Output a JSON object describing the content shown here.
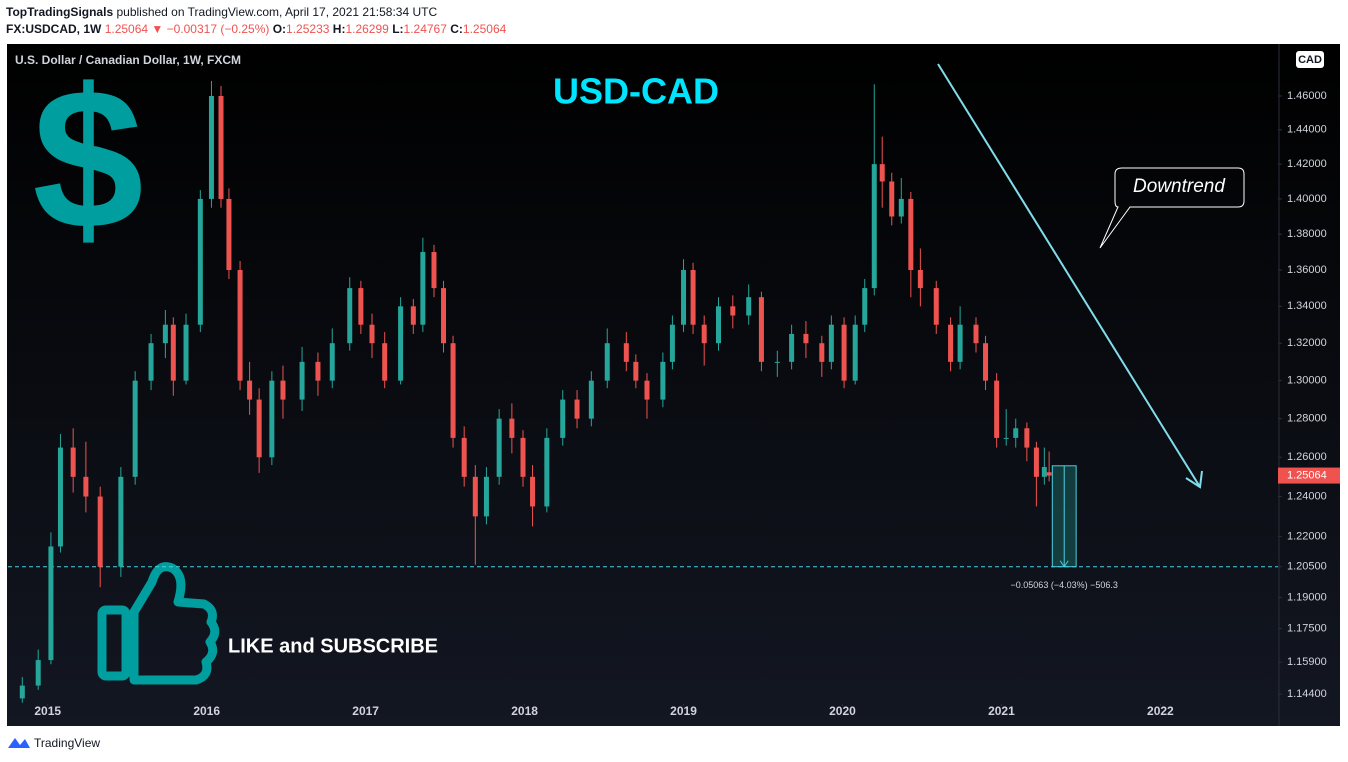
{
  "header": {
    "publisher": "TopTradingSignals",
    "published": "published on TradingView.com, April 17, 2021 21:58:34 UTC",
    "symbol": "FX:USDCAD, 1W",
    "change": "1.25064 ▼ −0.00317 (−0.25%)",
    "ohlc": [
      {
        "label": "O:",
        "value": "1.25233"
      },
      {
        "label": "H:",
        "value": "1.26299"
      },
      {
        "label": "L:",
        "value": "1.24767"
      },
      {
        "label": "C:",
        "value": "1.25064"
      }
    ]
  },
  "chart_data": {
    "type": "candlestick",
    "title": "USD-CAD",
    "subtitle": "U.S. Dollar / Canadian Dollar, 1W, FXCM",
    "currency": "CAD",
    "log_scale": true,
    "grid": false,
    "up_color": "#26a69a",
    "down_color": "#ef5350",
    "xlim": [
      2014.75,
      2022.74
    ],
    "xticks": [
      2015,
      2016,
      2017,
      2018,
      2019,
      2020,
      2021,
      2022
    ],
    "ylim": [
      1.1394,
      1.4913
    ],
    "yticks": [
      {
        "value": 1.46,
        "label": "1.46000"
      },
      {
        "value": 1.44,
        "label": "1.44000"
      },
      {
        "value": 1.42,
        "label": "1.42000"
      },
      {
        "value": 1.4,
        "label": "1.40000"
      },
      {
        "value": 1.38,
        "label": "1.38000"
      },
      {
        "value": 1.36,
        "label": "1.36000"
      },
      {
        "value": 1.34,
        "label": "1.34000"
      },
      {
        "value": 1.32,
        "label": "1.32000"
      },
      {
        "value": 1.3,
        "label": "1.30000"
      },
      {
        "value": 1.28,
        "label": "1.28000"
      },
      {
        "value": 1.26,
        "label": "1.26000"
      },
      {
        "value": 1.24,
        "label": "1.24000"
      },
      {
        "value": 1.22,
        "label": "1.22000"
      },
      {
        "value": 1.205,
        "label": "1.20500"
      },
      {
        "value": 1.19,
        "label": "1.19000"
      },
      {
        "value": 1.175,
        "label": "1.17500"
      },
      {
        "value": 1.159,
        "label": "1.15900"
      },
      {
        "value": 1.144,
        "label": "1.14400"
      }
    ],
    "x": [
      2014.84,
      2014.94,
      2015.02,
      2015.08,
      2015.16,
      2015.24,
      2015.33,
      2015.46,
      2015.55,
      2015.65,
      2015.74,
      2015.79,
      2015.87,
      2015.96,
      2016.03,
      2016.09,
      2016.14,
      2016.21,
      2016.27,
      2016.33,
      2016.41,
      2016.48,
      2016.6,
      2016.7,
      2016.79,
      2016.9,
      2016.97,
      2017.04,
      2017.12,
      2017.22,
      2017.3,
      2017.36,
      2017.43,
      2017.49,
      2017.55,
      2017.62,
      2017.69,
      2017.76,
      2017.84,
      2017.92,
      2017.99,
      2018.05,
      2018.14,
      2018.24,
      2018.33,
      2018.42,
      2018.52,
      2018.64,
      2018.7,
      2018.77,
      2018.87,
      2018.93,
      2019.0,
      2019.06,
      2019.13,
      2019.22,
      2019.31,
      2019.41,
      2019.49,
      2019.59,
      2019.68,
      2019.77,
      2019.87,
      2019.93,
      2020.01,
      2020.08,
      2020.14,
      2020.2,
      2020.25,
      2020.31,
      2020.37,
      2020.43,
      2020.49,
      2020.59,
      2020.68,
      2020.74,
      2020.84,
      2020.9,
      2020.97,
      2021.03,
      2021.09,
      2021.16,
      2021.22,
      2021.27,
      2021.3
    ],
    "open": [
      1.142,
      1.148,
      1.16,
      1.215,
      1.265,
      1.25,
      1.24,
      1.205,
      1.25,
      1.3,
      1.32,
      1.33,
      1.3,
      1.33,
      1.4,
      1.46,
      1.4,
      1.36,
      1.3,
      1.29,
      1.26,
      1.3,
      1.29,
      1.31,
      1.3,
      1.32,
      1.35,
      1.33,
      1.32,
      1.3,
      1.34,
      1.33,
      1.37,
      1.35,
      1.32,
      1.27,
      1.25,
      1.23,
      1.25,
      1.28,
      1.27,
      1.25,
      1.235,
      1.27,
      1.29,
      1.28,
      1.3,
      1.32,
      1.31,
      1.3,
      1.29,
      1.31,
      1.33,
      1.36,
      1.33,
      1.32,
      1.34,
      1.335,
      1.345,
      1.31,
      1.31,
      1.325,
      1.32,
      1.31,
      1.33,
      1.3,
      1.33,
      1.35,
      1.42,
      1.41,
      1.39,
      1.4,
      1.36,
      1.35,
      1.33,
      1.31,
      1.33,
      1.32,
      1.3,
      1.27,
      1.27,
      1.275,
      1.265,
      1.25,
      1.25233
    ],
    "high": [
      1.152,
      1.165,
      1.222,
      1.272,
      1.275,
      1.268,
      1.245,
      1.255,
      1.305,
      1.325,
      1.338,
      1.334,
      1.336,
      1.405,
      1.469,
      1.466,
      1.406,
      1.365,
      1.31,
      1.296,
      1.305,
      1.308,
      1.318,
      1.315,
      1.328,
      1.356,
      1.354,
      1.336,
      1.326,
      1.345,
      1.344,
      1.378,
      1.374,
      1.354,
      1.324,
      1.276,
      1.256,
      1.255,
      1.285,
      1.288,
      1.274,
      1.256,
      1.275,
      1.295,
      1.295,
      1.305,
      1.328,
      1.326,
      1.314,
      1.304,
      1.315,
      1.335,
      1.366,
      1.364,
      1.335,
      1.345,
      1.346,
      1.352,
      1.348,
      1.316,
      1.33,
      1.332,
      1.324,
      1.335,
      1.334,
      1.335,
      1.355,
      1.467,
      1.436,
      1.415,
      1.412,
      1.404,
      1.372,
      1.354,
      1.334,
      1.34,
      1.334,
      1.324,
      1.304,
      1.285,
      1.28,
      1.278,
      1.268,
      1.265,
      1.26299
    ],
    "low": [
      1.14,
      1.146,
      1.158,
      1.212,
      1.242,
      1.232,
      1.195,
      1.2,
      1.246,
      1.295,
      1.312,
      1.292,
      1.298,
      1.326,
      1.395,
      1.395,
      1.355,
      1.295,
      1.282,
      1.252,
      1.256,
      1.28,
      1.284,
      1.292,
      1.296,
      1.316,
      1.325,
      1.312,
      1.296,
      1.298,
      1.325,
      1.326,
      1.345,
      1.315,
      1.265,
      1.245,
      1.206,
      1.226,
      1.246,
      1.262,
      1.245,
      1.225,
      1.232,
      1.266,
      1.275,
      1.276,
      1.296,
      1.305,
      1.296,
      1.28,
      1.286,
      1.306,
      1.326,
      1.325,
      1.308,
      1.316,
      1.328,
      1.33,
      1.305,
      1.302,
      1.306,
      1.312,
      1.302,
      1.306,
      1.296,
      1.298,
      1.326,
      1.346,
      1.395,
      1.385,
      1.386,
      1.345,
      1.34,
      1.325,
      1.305,
      1.306,
      1.315,
      1.295,
      1.265,
      1.266,
      1.265,
      1.258,
      1.235,
      1.246,
      1.24767
    ],
    "close": [
      1.148,
      1.16,
      1.215,
      1.265,
      1.25,
      1.24,
      1.205,
      1.25,
      1.3,
      1.32,
      1.33,
      1.3,
      1.33,
      1.4,
      1.46,
      1.4,
      1.36,
      1.3,
      1.29,
      1.26,
      1.3,
      1.29,
      1.31,
      1.3,
      1.32,
      1.35,
      1.33,
      1.32,
      1.3,
      1.34,
      1.33,
      1.37,
      1.35,
      1.32,
      1.27,
      1.25,
      1.23,
      1.25,
      1.28,
      1.27,
      1.25,
      1.235,
      1.27,
      1.29,
      1.28,
      1.3,
      1.32,
      1.31,
      1.3,
      1.29,
      1.31,
      1.33,
      1.36,
      1.33,
      1.32,
      1.34,
      1.335,
      1.345,
      1.31,
      1.31,
      1.325,
      1.32,
      1.31,
      1.33,
      1.3,
      1.33,
      1.35,
      1.42,
      1.41,
      1.39,
      1.4,
      1.36,
      1.35,
      1.33,
      1.31,
      1.33,
      1.32,
      1.3,
      1.27,
      1.27,
      1.275,
      1.265,
      1.25,
      1.255,
      1.25064
    ],
    "last_price": 1.25064,
    "hline": 1.205,
    "measure": {
      "x": [
        2021.32,
        2021.47
      ],
      "from": 1.25563,
      "to": 1.205,
      "label": "−0.05063 (−4.03%) −506.3"
    },
    "annotations": {
      "callout": "Downtrend",
      "icon": "$",
      "cta": "LIKE and SUBSCRIBE"
    },
    "brand": "TradingView"
  }
}
